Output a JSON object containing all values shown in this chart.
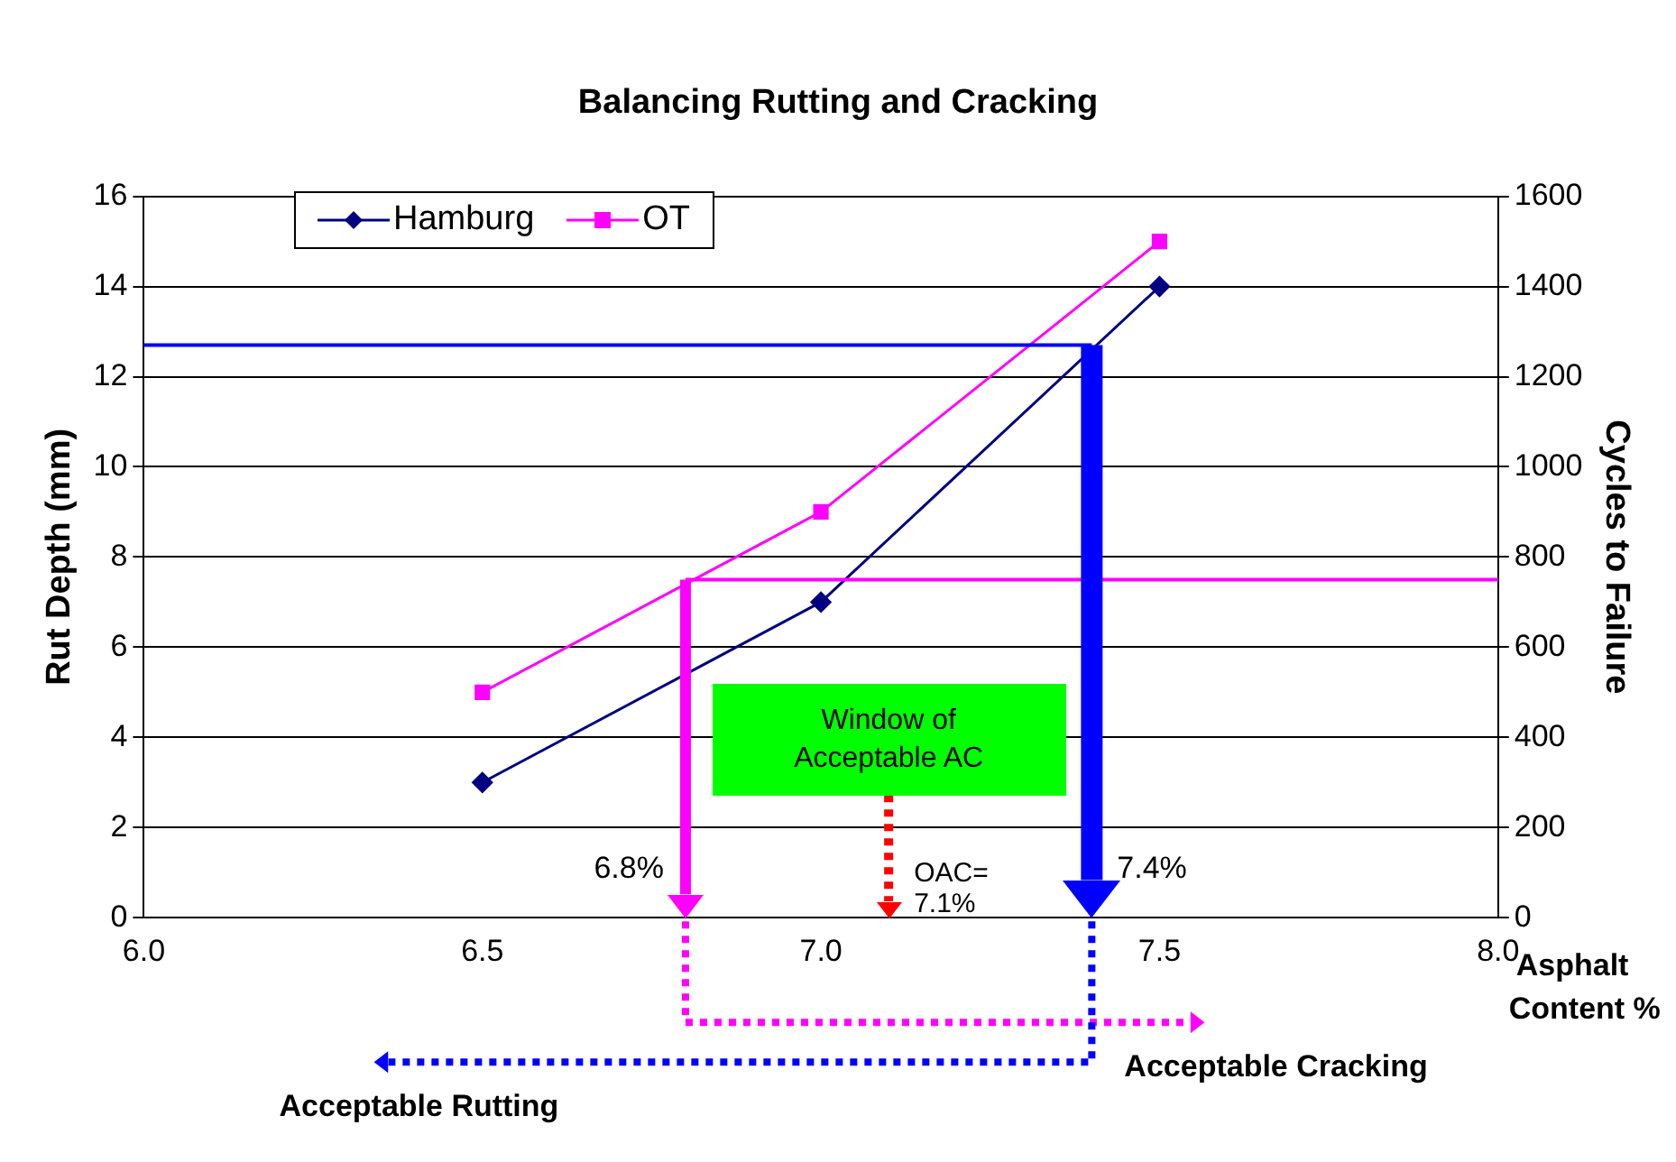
{
  "chart_data": {
    "type": "line",
    "title": "Balancing Rutting and Cracking",
    "xlabel": "Asphalt Content %",
    "ylabel": "Rut Depth (mm)",
    "y2label": "Cycles to Failure",
    "x": [
      6.5,
      7.0,
      7.5
    ],
    "series": [
      {
        "name": "Hamburg",
        "color": "#000080",
        "marker": "diamond",
        "values": [
          3,
          7,
          14
        ]
      },
      {
        "name": "OT",
        "color": "#ff00ff",
        "marker": "square",
        "axis": "y2",
        "values": [
          500,
          900,
          1500
        ]
      }
    ],
    "xlim": [
      6,
      8
    ],
    "xticks": [
      {
        "value": 6,
        "label": "6.0"
      },
      {
        "value": 6.5,
        "label": "6.5"
      },
      {
        "value": 7,
        "label": "7.0"
      },
      {
        "value": 7.5,
        "label": "7.5"
      },
      {
        "value": 8,
        "label": "8.0"
      }
    ],
    "ylim": [
      0,
      16
    ],
    "yticks": [
      0,
      2,
      4,
      6,
      8,
      10,
      12,
      14,
      16
    ],
    "y2lim": [
      0,
      1600
    ],
    "y2ticks": [
      0,
      200,
      400,
      600,
      800,
      1000,
      1200,
      1400,
      1600
    ],
    "grid": "y",
    "legend": "top left",
    "line_style": "solid",
    "ref_lines": [
      {
        "axis": "y",
        "value": 12.7,
        "color": "#0000ff"
      },
      {
        "axis": "y2",
        "value": 750,
        "color": "#ff00ff"
      },
      {
        "axis": "x",
        "value": 6.8,
        "label": "6.8%",
        "color": "#ff00ff"
      },
      {
        "axis": "x",
        "value": 7.4,
        "label": "7.4%",
        "color": "#0000ff"
      },
      {
        "axis": "x",
        "value": 7.1,
        "label": "OAC= 7.1%",
        "color": "#ff0000",
        "line_style": "dotted"
      }
    ],
    "annotations": [
      "Window of Acceptable AC",
      "Acceptable Cracking",
      "Acceptable Rutting"
    ]
  }
}
